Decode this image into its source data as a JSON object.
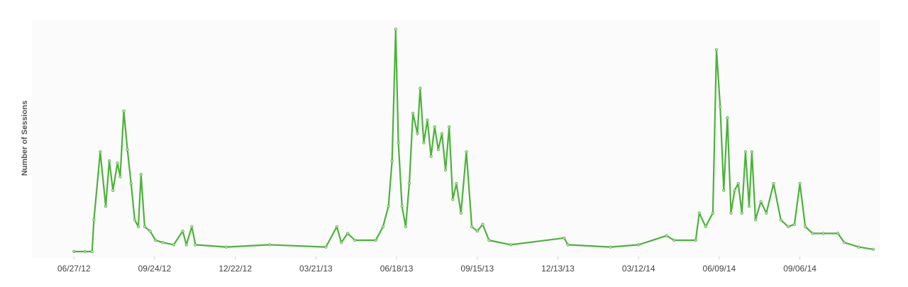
{
  "chart_data": {
    "type": "line",
    "y_label": "Number of Sessions",
    "color": "#4cb33a",
    "x": [
      "2012-06-27",
      "2012-07-09",
      "2012-07-17",
      "2012-07-19",
      "2012-07-26",
      "2012-08-01",
      "2012-08-05",
      "2012-08-09",
      "2012-08-14",
      "2012-08-17",
      "2012-08-21",
      "2012-08-25",
      "2012-08-29",
      "2012-09-02",
      "2012-09-06",
      "2012-09-09",
      "2012-09-13",
      "2012-09-19",
      "2012-09-25",
      "2012-10-03",
      "2012-10-15",
      "2012-10-25",
      "2012-10-29",
      "2012-11-04",
      "2012-11-08",
      "2012-12-12",
      "2013-01-29",
      "2013-04-01",
      "2013-04-13",
      "2013-04-18",
      "2013-04-25",
      "2013-05-03",
      "2013-05-26",
      "2013-06-03",
      "2013-06-09",
      "2013-06-13",
      "2013-06-17",
      "2013-06-20",
      "2013-06-24",
      "2013-06-28",
      "2013-07-02",
      "2013-07-06",
      "2013-07-11",
      "2013-07-14",
      "2013-07-18",
      "2013-07-22",
      "2013-07-26",
      "2013-07-30",
      "2013-08-03",
      "2013-08-07",
      "2013-08-11",
      "2013-08-15",
      "2013-08-19",
      "2013-08-23",
      "2013-08-28",
      "2013-09-03",
      "2013-09-09",
      "2013-09-15",
      "2013-09-21",
      "2013-09-28",
      "2013-10-22",
      "2013-12-20",
      "2013-12-24",
      "2014-02-09",
      "2014-03-12",
      "2014-04-12",
      "2014-04-20",
      "2014-05-14",
      "2014-05-18",
      "2014-05-25",
      "2014-06-02",
      "2014-06-06",
      "2014-06-10",
      "2014-06-14",
      "2014-06-18",
      "2014-06-22",
      "2014-06-26",
      "2014-06-30",
      "2014-07-04",
      "2014-07-08",
      "2014-07-12",
      "2014-07-15",
      "2014-07-19",
      "2014-07-25",
      "2014-07-31",
      "2014-08-08",
      "2014-08-16",
      "2014-08-24",
      "2014-08-31",
      "2014-09-06",
      "2014-09-12",
      "2014-09-20",
      "2014-10-02",
      "2014-10-18",
      "2014-10-25",
      "2014-11-10",
      "2014-11-26"
    ],
    "values": [
      0,
      0,
      0,
      14,
      44,
      20,
      40,
      27,
      39,
      33,
      62,
      45,
      30,
      14,
      11,
      34,
      11,
      9,
      5,
      4,
      3,
      9,
      3,
      11,
      3,
      2,
      3,
      2,
      11,
      4,
      8,
      5,
      5,
      11,
      20,
      40,
      98,
      48,
      20,
      11,
      30,
      61,
      52,
      72,
      48,
      58,
      42,
      55,
      45,
      52,
      36,
      55,
      23,
      30,
      17,
      44,
      11,
      9,
      12,
      5,
      3,
      6,
      3,
      2,
      3,
      7,
      5,
      5,
      17,
      11,
      17,
      89,
      64,
      27,
      59,
      17,
      27,
      30,
      17,
      44,
      20,
      44,
      14,
      22,
      17,
      30,
      14,
      11,
      12,
      30,
      11,
      8,
      8,
      8,
      4,
      2,
      1
    ],
    "xlim": [
      "2012-06-08",
      "2014-12-03"
    ],
    "xticks": [
      {
        "value": "2012-06-27",
        "label": "06/27/12"
      },
      {
        "value": "2012-09-24",
        "label": "09/24/12"
      },
      {
        "value": "2012-12-22",
        "label": "12/22/12"
      },
      {
        "value": "2013-03-21",
        "label": "03/21/13"
      },
      {
        "value": "2013-06-18",
        "label": "06/18/13"
      },
      {
        "value": "2013-09-15",
        "label": "09/15/13"
      },
      {
        "value": "2013-12-13",
        "label": "12/13/13"
      },
      {
        "value": "2014-03-12",
        "label": "03/12/14"
      },
      {
        "value": "2014-06-09",
        "label": "06/09/14"
      },
      {
        "value": "2014-09-06",
        "label": "09/06/14"
      }
    ],
    "ylim": [
      0,
      100
    ]
  }
}
